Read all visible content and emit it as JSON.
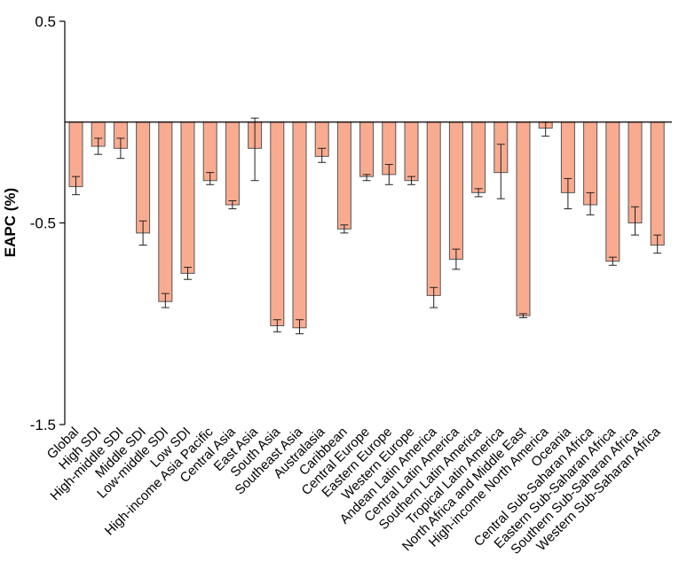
{
  "chart_data": {
    "type": "bar",
    "title": "",
    "xlabel": "",
    "ylabel": "EAPC (%)",
    "ylim": [
      -1.5,
      0.5
    ],
    "yticks": [
      0.5,
      -0.5,
      -1.5
    ],
    "ytick_labels": [
      "0.5",
      "-0.5",
      "-1.5"
    ],
    "categories": [
      "Global",
      "High SDI",
      "High-middle SDI",
      "Middle SDI",
      "Low-middle SDI",
      "Low SDI",
      "High-income Asia Pacific",
      "Central Asia",
      "East Asia",
      "South Asia",
      "Southeast Asia",
      "Australasia",
      "Caribbean",
      "Central Europe",
      "Eastern Europe",
      "Western Europe",
      "Andean Latin America",
      "Central Latin America",
      "Southern Latin America",
      "Tropical Latin America",
      "North Africa and Middle East",
      "High-income North America",
      "Oceania",
      "Central Sub-Saharan Africa",
      "Eastern Sub-Saharan Africa",
      "Southern Sub-Saharan Africa",
      "Western Sub-Saharan Africa"
    ],
    "values": [
      -0.32,
      -0.12,
      -0.13,
      -0.55,
      -0.89,
      -0.75,
      -0.29,
      -0.41,
      -0.13,
      -1.01,
      -1.02,
      -0.17,
      -0.53,
      -0.27,
      -0.26,
      -0.29,
      -0.86,
      -0.68,
      -0.35,
      -0.25,
      -0.96,
      -0.03,
      -0.35,
      -0.41,
      -0.69,
      -0.5,
      -0.61
    ],
    "error_low": [
      -0.36,
      -0.16,
      -0.18,
      -0.61,
      -0.92,
      -0.78,
      -0.31,
      -0.43,
      -0.29,
      -1.04,
      -1.05,
      -0.2,
      -0.55,
      -0.29,
      -0.31,
      -0.31,
      -0.92,
      -0.73,
      -0.37,
      -0.38,
      -0.97,
      -0.07,
      -0.43,
      -0.46,
      -0.71,
      -0.56,
      -0.65
    ],
    "error_high": [
      -0.27,
      -0.08,
      -0.08,
      -0.49,
      -0.85,
      -0.72,
      -0.25,
      -0.39,
      0.02,
      -0.98,
      -0.98,
      -0.13,
      -0.51,
      -0.26,
      -0.21,
      -0.27,
      -0.82,
      -0.63,
      -0.33,
      -0.11,
      -0.95,
      0.0,
      -0.28,
      -0.35,
      -0.67,
      -0.42,
      -0.56
    ],
    "bar_color": "#f9ab8f",
    "bar_edge_color": "#555555",
    "baseline": 0,
    "grid": false
  }
}
